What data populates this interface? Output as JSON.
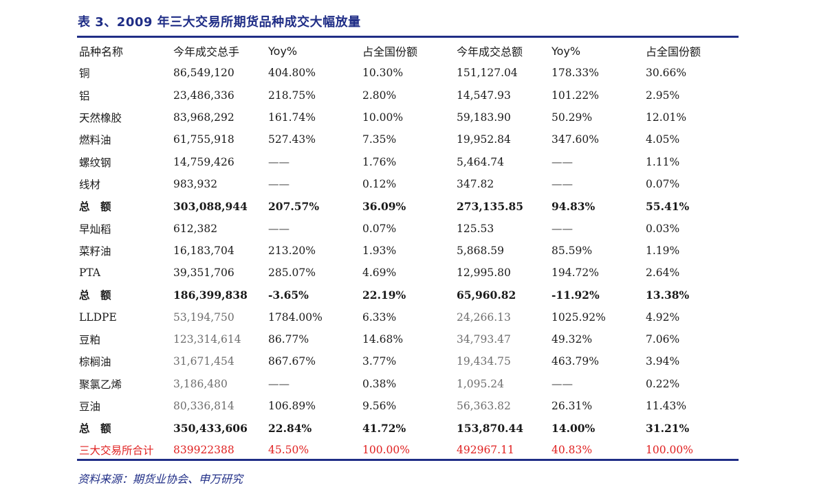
{
  "title": "表 3、2009 年三大交易所期货品种成交大幅放量",
  "headers": [
    "品种名称",
    "今年成交总手",
    "Yoy%",
    "占全国份额",
    "今年成交总额",
    "Yoy%",
    "占全国份额"
  ],
  "rows": [
    [
      "铜",
      "86,549,120",
      "404.80%",
      "10.30%",
      "151,127.04",
      "178.33%",
      "30.66%"
    ],
    [
      "铝",
      "23,486,336",
      "218.75%",
      "2.80%",
      "14,547.93",
      "101.22%",
      "2.95%"
    ],
    [
      "天然橡胶",
      "83,968,292",
      "161.74%",
      "10.00%",
      "59,183.90",
      "50.29%",
      "12.01%"
    ],
    [
      "燃料油",
      "61,755,918",
      "527.43%",
      "7.35%",
      "19,952.84",
      "347.60%",
      "4.05%"
    ],
    [
      "螺纹钢",
      "14,759,426",
      "——",
      "1.76%",
      "5,464.74",
      "——",
      "1.11%"
    ],
    [
      "线材",
      "983,932",
      "——",
      "0.12%",
      "347.82",
      "——",
      "0.07%"
    ],
    [
      "总　额",
      "303,088,944",
      "207.57%",
      "36.09%",
      "273,135.85",
      "94.83%",
      "55.41%"
    ],
    [
      "早灿稻",
      "612,382",
      "——",
      "0.07%",
      "125.53",
      "——",
      "0.03%"
    ],
    [
      "菜籽油",
      "16,183,704",
      "213.20%",
      "1.93%",
      "5,868.59",
      "85.59%",
      "1.19%"
    ],
    [
      "PTA",
      "39,351,706",
      "285.07%",
      "4.69%",
      "12,995.80",
      "194.72%",
      "2.64%"
    ],
    [
      "总　额",
      "186,399,838",
      "-3.65%",
      "22.19%",
      "65,960.82",
      "-11.92%",
      "13.38%"
    ],
    [
      "LLDPE",
      "53,194,750",
      "1784.00%",
      "6.33%",
      "24,266.13",
      "1025.92%",
      "4.92%"
    ],
    [
      "豆粕",
      "123,314,614",
      "86.77%",
      "14.68%",
      "34,793.47",
      "49.32%",
      "7.06%"
    ],
    [
      "棕榈油",
      "31,671,454",
      "867.67%",
      "3.77%",
      "19,434.75",
      "463.79%",
      "3.94%"
    ],
    [
      "聚氯乙烯",
      "3,186,480",
      "——",
      "0.38%",
      "1,095.24",
      "——",
      "0.22%"
    ],
    [
      "豆油",
      "80,336,814",
      "106.89%",
      "9.56%",
      "56,363.82",
      "26.31%",
      "11.43%"
    ],
    [
      "总　额",
      "350,433,606",
      "22.84%",
      "41.72%",
      "153,870.44",
      "14.00%",
      "31.21%"
    ],
    [
      "三大交易所合计",
      "839922388",
      "45.50%",
      "100.00%",
      "492967.11",
      "40.83%",
      "100.00%"
    ]
  ],
  "source": "资料来源：期货业协会、申万研究",
  "colors": {
    "title": "#1f2d86",
    "highlight": "#e02020",
    "muted": "#6e6e6e"
  }
}
